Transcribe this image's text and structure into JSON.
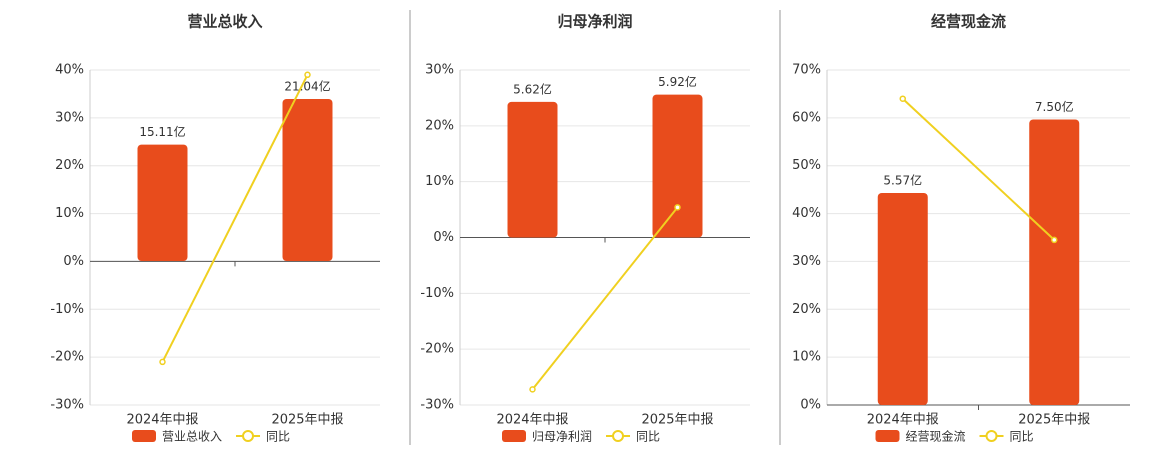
{
  "chart_data": [
    {
      "type": "bar",
      "title": "营业总收入",
      "categories": [
        "2024年中报",
        "2025年中报"
      ],
      "series": [
        {
          "name": "营业总收入",
          "type": "bar",
          "color": "#e84c1c",
          "axis": "y2",
          "values": [
            15.11,
            21.04
          ],
          "value_labels": [
            "15.11亿",
            "21.04亿"
          ]
        },
        {
          "name": "同比",
          "type": "line",
          "color": "#f0d020",
          "values": [
            -21,
            39
          ]
        }
      ],
      "ylim": [
        -30,
        40
      ],
      "yticks": [
        {
          "value": -30,
          "label": "-30%"
        },
        {
          "value": -20,
          "label": "-20%"
        },
        {
          "value": -10,
          "label": "-10%"
        },
        {
          "value": 0,
          "label": "0%"
        },
        {
          "value": 10,
          "label": "10%"
        },
        {
          "value": 20,
          "label": "20%"
        },
        {
          "value": 30,
          "label": "30%"
        },
        {
          "value": 40,
          "label": "40%"
        }
      ],
      "y2lim": [
        -18.7,
        24.8
      ],
      "grid": true
    },
    {
      "type": "bar",
      "title": "归母净利润",
      "categories": [
        "2024年中报",
        "2025年中报"
      ],
      "series": [
        {
          "name": "归母净利润",
          "type": "bar",
          "color": "#e84c1c",
          "axis": "y2",
          "values": [
            5.62,
            5.92
          ],
          "value_labels": [
            "5.62亿",
            "5.92亿"
          ]
        },
        {
          "name": "同比",
          "type": "line",
          "color": "#f0d020",
          "values": [
            -27.2,
            5.4
          ]
        }
      ],
      "ylim": [
        -30,
        30
      ],
      "yticks": [
        {
          "value": -30,
          "label": "-30%"
        },
        {
          "value": -20,
          "label": "-20%"
        },
        {
          "value": -10,
          "label": "-10%"
        },
        {
          "value": 0,
          "label": "0%"
        },
        {
          "value": 10,
          "label": "10%"
        },
        {
          "value": 20,
          "label": "20%"
        },
        {
          "value": 30,
          "label": "30%"
        }
      ],
      "y2lim": [
        -6.94,
        6.94
      ],
      "grid": true
    },
    {
      "type": "bar",
      "title": "经营现金流",
      "categories": [
        "2024年中报",
        "2025年中报"
      ],
      "series": [
        {
          "name": "经营现金流",
          "type": "bar",
          "color": "#e84c1c",
          "axis": "y2",
          "values": [
            5.57,
            7.5
          ],
          "value_labels": [
            "5.57亿",
            "7.50亿"
          ]
        },
        {
          "name": "同比",
          "type": "line",
          "color": "#f0d020",
          "values": [
            64,
            34.5
          ]
        }
      ],
      "ylim": [
        0,
        70
      ],
      "yticks": [
        {
          "value": 0,
          "label": "0%"
        },
        {
          "value": 10,
          "label": "10%"
        },
        {
          "value": 20,
          "label": "20%"
        },
        {
          "value": 30,
          "label": "30%"
        },
        {
          "value": 40,
          "label": "40%"
        },
        {
          "value": 50,
          "label": "50%"
        },
        {
          "value": 60,
          "label": "60%"
        },
        {
          "value": 70,
          "label": "70%"
        }
      ],
      "y2lim": [
        0,
        8.8
      ],
      "grid": true
    }
  ]
}
